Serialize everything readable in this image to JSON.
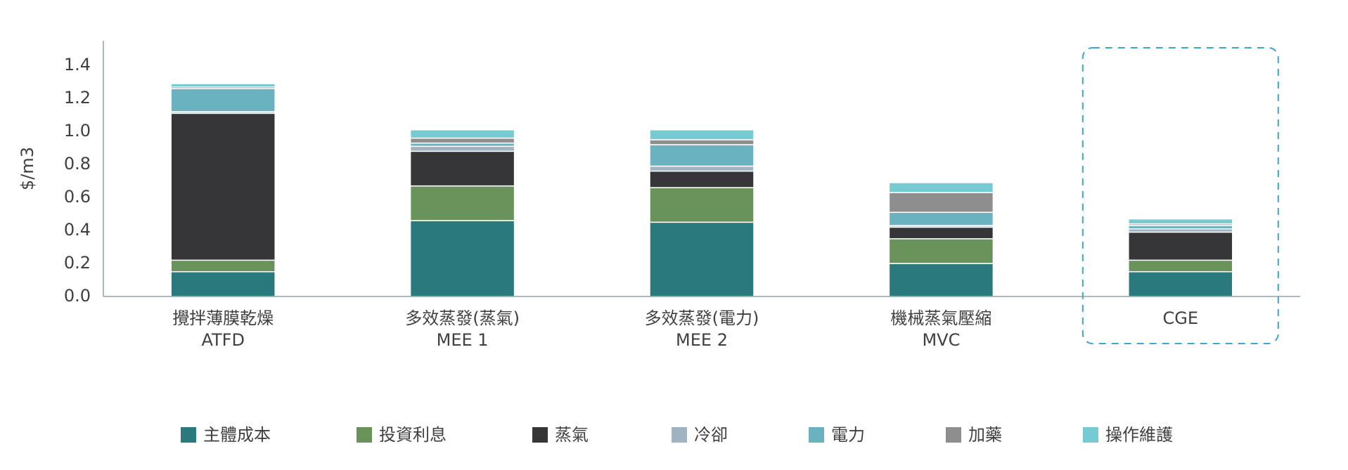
{
  "chart_data": {
    "type": "stacked_bar",
    "y_label": "$/m3",
    "categories": [
      [
        "攪拌薄膜乾燥",
        "ATFD"
      ],
      [
        "多效蒸發(蒸氣)",
        "MEE 1"
      ],
      [
        "多效蒸發(電力)",
        "MEE 2"
      ],
      [
        "機械蒸氣壓縮",
        "MVC"
      ],
      [
        "CGE"
      ]
    ],
    "series": [
      {
        "name": "主體成本",
        "color": "#2a797d",
        "values": [
          0.15,
          0.46,
          0.45,
          0.2,
          0.15
        ]
      },
      {
        "name": "投資利息",
        "color": "#6a935c",
        "values": [
          0.07,
          0.21,
          0.21,
          0.15,
          0.07
        ]
      },
      {
        "name": "蒸氣",
        "color": "#363638",
        "values": [
          0.89,
          0.21,
          0.1,
          0.07,
          0.17
        ]
      },
      {
        "name": "冷卻",
        "color": "#9fb3c3",
        "values": [
          0.01,
          0.03,
          0.03,
          0.01,
          0.02
        ]
      },
      {
        "name": "電力",
        "color": "#6ab2c0",
        "values": [
          0.14,
          0.02,
          0.13,
          0.08,
          0.02
        ]
      },
      {
        "name": "加藥",
        "color": "#8e8e8e",
        "values": [
          0.01,
          0.03,
          0.03,
          0.12,
          0.01
        ]
      },
      {
        "name": "操作維護",
        "color": "#76cbd3",
        "values": [
          0.02,
          0.05,
          0.06,
          0.06,
          0.03
        ]
      }
    ],
    "ylim": [
      0,
      1.55
    ],
    "yticks": [
      {
        "value": 0,
        "label": "0.0"
      },
      0.2,
      0.4,
      0.6,
      0.8,
      {
        "value": 1,
        "label": "1.0"
      },
      1.2,
      1.4
    ],
    "highlight_category": 4,
    "grid": false,
    "legend": "bottom"
  }
}
